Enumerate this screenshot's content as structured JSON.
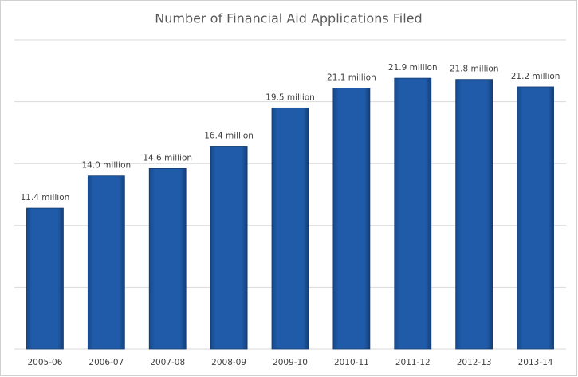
{
  "chart_data": {
    "type": "bar",
    "title": "Number of Financial Aid Applications Filed",
    "categories": [
      "2005-06",
      "2006-07",
      "2007-08",
      "2008-09",
      "2009-10",
      "2010-11",
      "2011-12",
      "2012-13",
      "2013-14"
    ],
    "values": [
      11.4,
      14.0,
      14.6,
      16.4,
      19.5,
      21.1,
      21.9,
      21.8,
      21.2
    ],
    "value_labels": [
      "11.4 million",
      "14.0 million",
      "14.6 million",
      "16.4 million",
      "19.5 million",
      "21.1 million",
      "21.9 million",
      "21.8 million",
      "21.2 million"
    ],
    "color": "#1f5ba8",
    "ylim": [
      0,
      25
    ],
    "yticks": [
      0,
      5,
      10,
      15,
      20,
      25
    ],
    "grid": true
  }
}
